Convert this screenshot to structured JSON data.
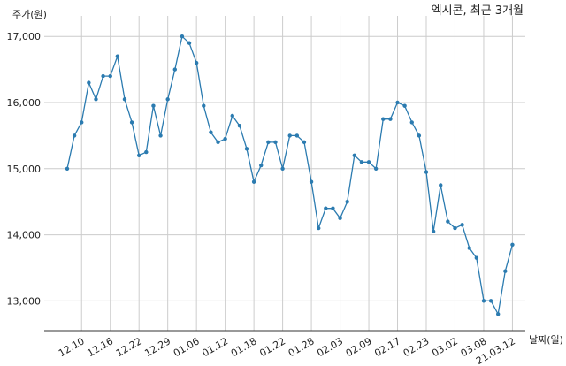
{
  "chart_data": {
    "type": "line",
    "title": "엑시콘, 최근 3개월",
    "ylabel": "주가(원)",
    "xlabel": "날짜(일)",
    "ylim": [
      12550,
      17150
    ],
    "yticks": [
      13000,
      14000,
      15000,
      16000,
      17000
    ],
    "ytick_labels": [
      "13,000",
      "14,000",
      "15,000",
      "16,000",
      "17,000"
    ],
    "xtick_labels": [
      "12.10",
      "12.16",
      "12.22",
      "12.29",
      "01.06",
      "01.12",
      "01.18",
      "01.22",
      "01.28",
      "02.03",
      "02.09",
      "02.17",
      "02.23",
      "03.02",
      "03.08",
      "21.03.12"
    ],
    "xtick_index": [
      2,
      6,
      10,
      14,
      18,
      22,
      26,
      30,
      34,
      38,
      42,
      46,
      50,
      54,
      58,
      62
    ],
    "grid": true,
    "line_color": "#2b7bb0",
    "series": [
      {
        "values": [
          15000,
          15500,
          15700,
          16300,
          16050,
          16400,
          16400,
          16700,
          16050,
          15700,
          15200,
          15250,
          15950,
          15500,
          16050,
          16500,
          17000,
          16900,
          16600,
          15950,
          15550,
          15400,
          15450,
          15800,
          15650,
          15300,
          14800,
          15050,
          15400,
          15400,
          15000,
          15500,
          15500,
          15400,
          14800,
          14100,
          14400,
          14400,
          14250,
          14500,
          15200,
          15100,
          15100,
          15000,
          15750,
          15750,
          16000,
          15950,
          15700,
          15500,
          14950,
          14050,
          14750,
          14200,
          14100,
          14150,
          13800,
          13650,
          13000,
          13000,
          12800,
          13450,
          13850
        ]
      }
    ]
  }
}
